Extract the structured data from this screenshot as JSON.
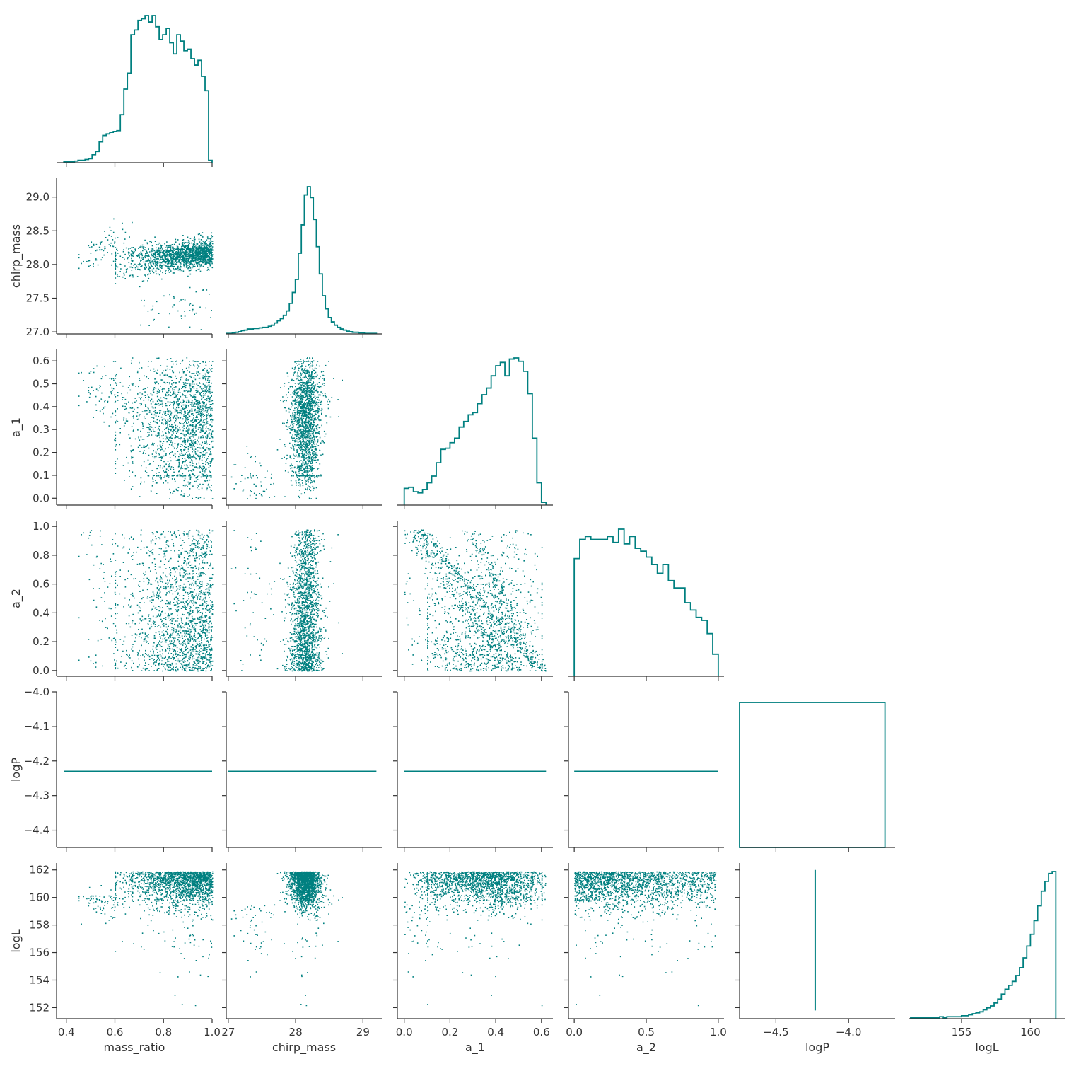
{
  "chart_data": {
    "type": "scatter",
    "variables": [
      "mass_ratio",
      "chirp_mass",
      "a_1",
      "a_2",
      "logP",
      "logL"
    ],
    "labels": {
      "mass_ratio": "mass_ratio",
      "chirp_mass": "chirp_mass",
      "a_1": "a_1",
      "a_2": "a_2",
      "logP": "logP",
      "logL": "logL"
    },
    "color": "#008080",
    "diagonal": "step histogram",
    "grid": false,
    "legend": "none",
    "ranges": {
      "mass_ratio": [
        0.36,
        1.0
      ],
      "chirp_mass": [
        26.97,
        29.28
      ],
      "a_1": [
        -0.03,
        0.65
      ],
      "a_2": [
        -0.04,
        1.04
      ],
      "logP": [
        -4.45,
        -4.0
      ],
      "logL": [
        151.2,
        162.5
      ]
    },
    "hist_x_ranges": {
      "logP": [
        -4.75,
        -3.68
      ],
      "logL": [
        151.2,
        162.5
      ]
    },
    "ticks": {
      "mass_ratio": [
        0.4,
        0.6,
        0.8,
        1.0
      ],
      "chirp_mass": [
        27.0,
        27.5,
        28.0,
        28.5,
        29.0
      ],
      "chirp_mass_bottom": [
        27,
        28,
        29
      ],
      "a_1": [
        0.0,
        0.1,
        0.2,
        0.3,
        0.4,
        0.5,
        0.6
      ],
      "a_1_bottom": [
        0.0,
        0.2,
        0.4,
        0.6
      ],
      "a_2": [
        0.0,
        0.2,
        0.4,
        0.6,
        0.8,
        1.0
      ],
      "a_2_bottom": [
        0.0,
        0.5,
        1.0
      ],
      "logP": [
        -4.4,
        -4.3,
        -4.2,
        -4.1,
        -4.0
      ],
      "logP_bottom": [
        -4.5,
        -4.0
      ],
      "logL": [
        152,
        154,
        156,
        158,
        160,
        162
      ],
      "logL_bottom": [
        155,
        160
      ]
    },
    "tick_labels": {
      "mass_ratio": [
        "0.4",
        "0.6",
        "0.8",
        "1.0"
      ],
      "chirp_mass": [
        "27.0",
        "27.5",
        "28.0",
        "28.5",
        "29.0"
      ],
      "chirp_mass_bottom": [
        "27",
        "28",
        "29"
      ],
      "a_1": [
        "0.0",
        "0.1",
        "0.2",
        "0.3",
        "0.4",
        "0.5",
        "0.6"
      ],
      "a_1_bottom": [
        "0.0",
        "0.2",
        "0.4",
        "0.6"
      ],
      "a_2": [
        "0.0",
        "0.2",
        "0.4",
        "0.6",
        "0.8",
        "1.0"
      ],
      "a_2_bottom": [
        "0.0",
        "0.5",
        "1.0"
      ],
      "logP": [
        "−4.4",
        "−4.3",
        "−4.2",
        "−4.1",
        "−4.0"
      ],
      "logP_bottom": [
        "−4.5",
        "−4.0"
      ],
      "logL": [
        "152",
        "154",
        "156",
        "158",
        "160",
        "162"
      ],
      "logL_bottom": [
        "155",
        "160"
      ]
    },
    "logP_value": -4.23,
    "logP_hist_bin": [
      -4.75,
      -3.75
    ],
    "histograms": {
      "mass_ratio": {
        "edges_start": 0.39,
        "edges_end": 1.0,
        "counts": [
          1,
          1,
          1,
          2,
          3,
          3,
          4,
          5,
          10,
          14,
          26,
          34,
          36,
          38,
          39,
          40,
          60,
          92,
          112,
          160,
          166,
          178,
          180,
          184,
          176,
          184,
          170,
          154,
          160,
          168,
          150,
          136,
          160,
          152,
          140,
          142,
          130,
          122,
          128,
          108,
          90,
          3
        ]
      },
      "chirp_mass": {
        "edges_start": 26.97,
        "edges_end": 29.2,
        "counts": [
          1,
          1,
          2,
          3,
          4,
          6,
          7,
          9,
          9,
          10,
          10,
          11,
          12,
          12,
          14,
          16,
          20,
          24,
          28,
          34,
          42,
          56,
          76,
          100,
          148,
          200,
          255,
          270,
          250,
          210,
          160,
          110,
          70,
          46,
          30,
          22,
          16,
          12,
          9,
          7,
          5,
          4,
          3,
          3,
          2,
          2,
          1,
          1,
          1,
          1
        ]
      },
      "a_1": {
        "edges_start": 0.0,
        "edges_end": 0.62,
        "counts": [
          30,
          32,
          24,
          22,
          28,
          40,
          52,
          76,
          100,
          102,
          112,
          120,
          140,
          150,
          162,
          166,
          182,
          198,
          210,
          232,
          250,
          256,
          232,
          262,
          264,
          258,
          240,
          200,
          120,
          40,
          5
        ]
      },
      "a_2": {
        "edges_start": 0.0,
        "edges_end": 1.0,
        "counts": [
          160,
          186,
          190,
          186,
          186,
          186,
          190,
          182,
          200,
          180,
          190,
          174,
          170,
          162,
          152,
          140,
          152,
          130,
          120,
          120,
          100,
          90,
          80,
          76,
          58,
          30
        ]
      },
      "logL": {
        "edges_start": 151.3,
        "edges_end": 161.85,
        "counts": [
          1,
          1,
          1,
          1,
          1,
          1,
          1,
          1,
          2,
          1,
          2,
          2,
          2,
          2,
          3,
          3,
          4,
          5,
          6,
          7,
          9,
          11,
          13,
          16,
          20,
          25,
          30,
          34,
          38,
          44,
          52,
          62,
          74,
          86,
          100,
          115,
          130,
          140,
          148,
          150
        ]
      }
    }
  }
}
